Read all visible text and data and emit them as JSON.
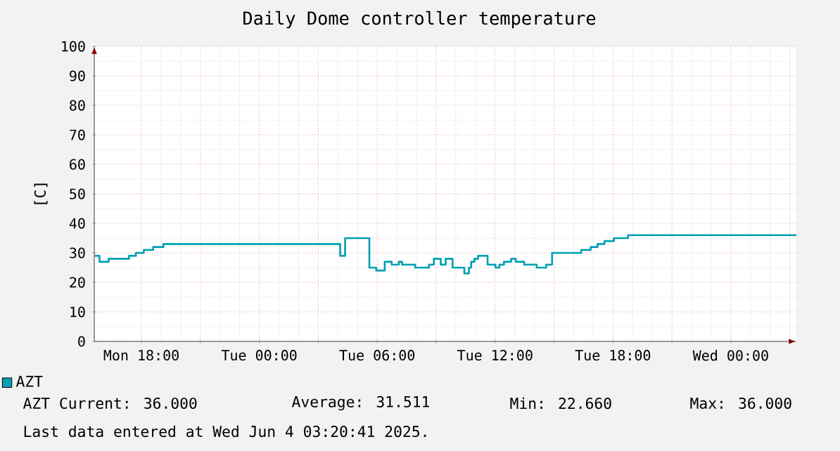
{
  "chart_data": {
    "type": "step",
    "title": "Daily Dome controller temperature",
    "ylabel": "[C]",
    "x": [
      "2025-06-02T15:38",
      "2025-06-02T15:52",
      "2025-06-02T16:20",
      "2025-06-02T17:22",
      "2025-06-02T17:43",
      "2025-06-02T18:07",
      "2025-06-02T18:36",
      "2025-06-02T19:07",
      "2025-06-03T04:07",
      "2025-06-03T04:22",
      "2025-06-03T05:36",
      "2025-06-03T05:57",
      "2025-06-03T06:23",
      "2025-06-03T06:44",
      "2025-06-03T07:06",
      "2025-06-03T07:16",
      "2025-06-03T07:56",
      "2025-06-03T08:38",
      "2025-06-03T08:53",
      "2025-06-03T09:14",
      "2025-06-03T09:29",
      "2025-06-03T09:50",
      "2025-06-03T10:26",
      "2025-06-03T10:40",
      "2025-06-03T10:47",
      "2025-06-03T10:57",
      "2025-06-03T11:08",
      "2025-06-03T11:37",
      "2025-06-03T12:01",
      "2025-06-03T12:13",
      "2025-06-03T12:27",
      "2025-06-03T12:49",
      "2025-06-03T13:03",
      "2025-06-03T13:29",
      "2025-06-03T14:07",
      "2025-06-03T14:36",
      "2025-06-03T14:54",
      "2025-06-03T16:23",
      "2025-06-03T16:52",
      "2025-06-03T17:13",
      "2025-06-03T17:34",
      "2025-06-03T18:03",
      "2025-06-03T18:46",
      "2025-06-04T03:20"
    ],
    "series": [
      {
        "name": "AZT",
        "color": "#00a0b4",
        "values": [
          29,
          27,
          28,
          29,
          30,
          31,
          32,
          33,
          29,
          35,
          25,
          24,
          27,
          26,
          27,
          26,
          25,
          26,
          28,
          26,
          28,
          25,
          23,
          25,
          27,
          28,
          29,
          26,
          25,
          26,
          27,
          28,
          27,
          26,
          25,
          26,
          30,
          31,
          32,
          33,
          34,
          35,
          36,
          36
        ]
      }
    ],
    "xlim": [
      "2025-06-02T15:36",
      "2025-06-04T03:20"
    ],
    "xticks": [
      {
        "value": "2025-06-02T18:00",
        "label": "Mon 18:00"
      },
      {
        "value": "2025-06-02T21:00",
        "label": null
      },
      {
        "value": "2025-06-03T00:00",
        "label": "Tue 00:00"
      },
      {
        "value": "2025-06-03T03:00",
        "label": null
      },
      {
        "value": "2025-06-03T06:00",
        "label": "Tue 06:00"
      },
      {
        "value": "2025-06-03T09:00",
        "label": null
      },
      {
        "value": "2025-06-03T12:00",
        "label": "Tue 12:00"
      },
      {
        "value": "2025-06-03T15:00",
        "label": null
      },
      {
        "value": "2025-06-03T18:00",
        "label": "Tue 18:00"
      },
      {
        "value": "2025-06-03T21:00",
        "label": null
      },
      {
        "value": "2025-06-04T00:00",
        "label": "Wed 00:00"
      },
      {
        "value": "2025-06-04T03:00",
        "label": null
      }
    ],
    "ylim": [
      0,
      100
    ],
    "yticks": [
      0,
      10,
      20,
      30,
      40,
      50,
      60,
      70,
      80,
      90,
      100
    ],
    "grid": true,
    "legend": "bottom",
    "annotations": [
      "AZT  Current:    36.000",
      "Average:    31.511",
      "Min:    22.660",
      "Max:    36.000",
      "Last data entered at Wed Jun  4 03:20:41 2025."
    ]
  }
}
